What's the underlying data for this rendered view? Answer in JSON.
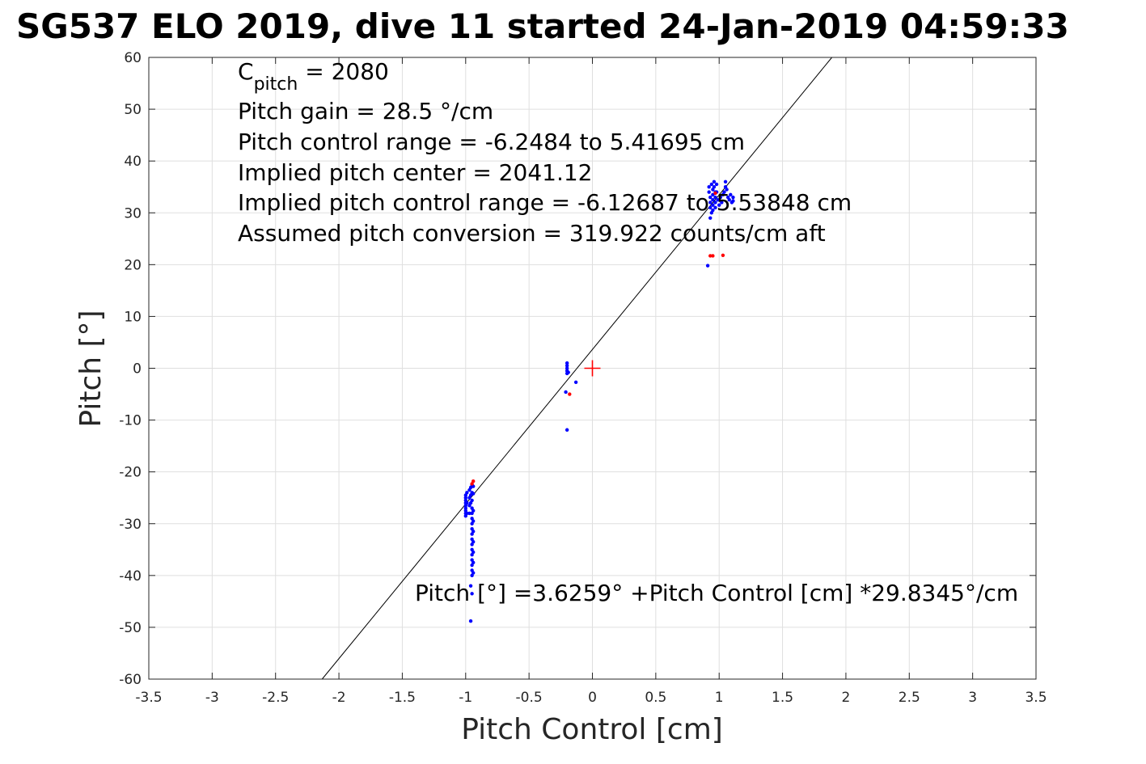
{
  "chart_data": {
    "type": "scatter",
    "title": "SG537 ELO 2019, dive 11 started 24-Jan-2019 04:59:33",
    "xlabel": "Pitch Control [cm]",
    "ylabel": "Pitch [°]",
    "xlim": [
      -3.5,
      3.5
    ],
    "ylim": [
      -60,
      60
    ],
    "xticks": [
      -3.5,
      -3,
      -2.5,
      -2,
      -1.5,
      -1,
      -0.5,
      0,
      0.5,
      1,
      1.5,
      2,
      2.5,
      3,
      3.5
    ],
    "yticks": [
      -60,
      -50,
      -40,
      -30,
      -20,
      -10,
      0,
      10,
      20,
      30,
      40,
      50,
      60
    ],
    "xtick_labels": [
      "-3.5",
      "-3",
      "-2.5",
      "-2",
      "-1.5",
      "-1",
      "-0.5",
      "0",
      "0.5",
      "1",
      "1.5",
      "2",
      "2.5",
      "3",
      "3.5"
    ],
    "ytick_labels": [
      "-60",
      "-50",
      "-40",
      "-30",
      "-20",
      "-10",
      "0",
      "10",
      "20",
      "30",
      "40",
      "50",
      "60"
    ],
    "grid": true,
    "fit_line": {
      "intercept": 3.6259,
      "slope": 29.8345,
      "color": "#000000"
    },
    "center_marker": {
      "x": 0,
      "y": 0,
      "color": "#ff0000"
    },
    "series": [
      {
        "color": "#0000ff",
        "points": [
          [
            -0.2,
            1.0
          ],
          [
            -0.2,
            0.5
          ],
          [
            -0.2,
            0.0
          ],
          [
            -0.2,
            -0.5
          ],
          [
            -0.19,
            -0.8
          ],
          [
            -0.2,
            -1.0
          ],
          [
            -0.13,
            -2.7
          ],
          [
            -0.21,
            -4.6
          ],
          [
            -0.2,
            -11.9
          ],
          [
            -1.0,
            -24.5
          ],
          [
            -1.0,
            -25.0
          ],
          [
            -1.0,
            -25.5
          ],
          [
            -1.0,
            -26.0
          ],
          [
            -1.0,
            -26.5
          ],
          [
            -1.0,
            -27.0
          ],
          [
            -1.0,
            -27.5
          ],
          [
            -1.0,
            -28.0
          ],
          [
            -1.0,
            -28.5
          ],
          [
            -0.99,
            -24.0
          ],
          [
            -0.99,
            -26.0
          ],
          [
            -0.99,
            -28.0
          ],
          [
            -0.97,
            -23.5
          ],
          [
            -0.97,
            -25.0
          ],
          [
            -0.97,
            -26.5
          ],
          [
            -0.97,
            -28.0
          ],
          [
            -0.96,
            -23.0
          ],
          [
            -0.96,
            -24.5
          ],
          [
            -0.96,
            -26.0
          ],
          [
            -0.95,
            -22.5
          ],
          [
            -0.95,
            -24.0
          ],
          [
            -0.95,
            -25.5
          ],
          [
            -0.94,
            -22.8
          ],
          [
            -0.94,
            -24.2
          ],
          [
            -0.95,
            -27.0
          ],
          [
            -0.95,
            -28.0
          ],
          [
            -0.95,
            -29.0
          ],
          [
            -0.95,
            -30.0
          ],
          [
            -0.95,
            -31.0
          ],
          [
            -0.95,
            -32.0
          ],
          [
            -0.95,
            -33.0
          ],
          [
            -0.95,
            -34.0
          ],
          [
            -0.95,
            -35.0
          ],
          [
            -0.95,
            -36.0
          ],
          [
            -0.95,
            -37.0
          ],
          [
            -0.95,
            -38.0
          ],
          [
            -0.95,
            -39.0
          ],
          [
            -0.95,
            -40.0
          ],
          [
            -0.94,
            -27.5
          ],
          [
            -0.94,
            -29.5
          ],
          [
            -0.94,
            -31.5
          ],
          [
            -0.94,
            -33.5
          ],
          [
            -0.94,
            -35.5
          ],
          [
            -0.94,
            -37.5
          ],
          [
            -0.94,
            -39.5
          ],
          [
            -0.96,
            -42.0
          ],
          [
            -0.95,
            -43.5
          ],
          [
            -0.96,
            -48.8
          ],
          [
            0.92,
            35.0
          ],
          [
            0.92,
            34.0
          ],
          [
            0.93,
            33.0
          ],
          [
            0.93,
            32.0
          ],
          [
            0.93,
            31.0
          ],
          [
            0.94,
            30.0
          ],
          [
            0.93,
            29.0
          ],
          [
            0.94,
            35.5
          ],
          [
            0.95,
            34.5
          ],
          [
            0.95,
            33.5
          ],
          [
            0.95,
            32.5
          ],
          [
            0.95,
            31.5
          ],
          [
            0.95,
            30.5
          ],
          [
            0.96,
            36.0
          ],
          [
            0.96,
            35.0
          ],
          [
            0.97,
            34.0
          ],
          [
            0.97,
            33.0
          ],
          [
            0.97,
            32.0
          ],
          [
            0.97,
            31.0
          ],
          [
            0.98,
            35.5
          ],
          [
            0.98,
            34.0
          ],
          [
            0.99,
            32.5
          ],
          [
            1.0,
            31.5
          ],
          [
            1.01,
            33.0
          ],
          [
            1.02,
            32.0
          ],
          [
            1.03,
            33.5
          ],
          [
            1.04,
            34.0
          ],
          [
            1.05,
            35.0
          ],
          [
            1.05,
            36.0
          ],
          [
            1.06,
            34.5
          ],
          [
            1.07,
            33.0
          ],
          [
            1.08,
            32.5
          ],
          [
            1.09,
            33.5
          ],
          [
            1.1,
            32.0
          ],
          [
            1.11,
            33.0
          ],
          [
            1.11,
            32.3
          ],
          [
            0.91,
            19.8
          ]
        ]
      },
      {
        "color": "#ff0000",
        "points": [
          [
            -0.18,
            -5.0
          ],
          [
            -0.94,
            -21.8
          ],
          [
            -0.95,
            -22.3
          ],
          [
            0.93,
            21.7
          ],
          [
            0.95,
            21.7
          ],
          [
            1.03,
            21.8
          ],
          [
            0.97,
            33.8
          ]
        ]
      }
    ],
    "annotations": {
      "cpitch_base": "C",
      "cpitch_sub": "pitch",
      "cpitch_value": " = 2080",
      "pitch_gain": "Pitch gain = 28.5 °/cm",
      "pitch_control_range": "Pitch control range = -6.2484 to 5.41695 cm",
      "implied_center": "Implied pitch center = 2041.12",
      "implied_range": "Implied pitch control range = -6.12687 to 5.53848 cm",
      "assumed_conversion": "Assumed pitch conversion = 319.922 counts/cm aft",
      "fit_equation": "Pitch [°] =3.6259° +Pitch Control [cm] *29.8345°/cm"
    }
  }
}
